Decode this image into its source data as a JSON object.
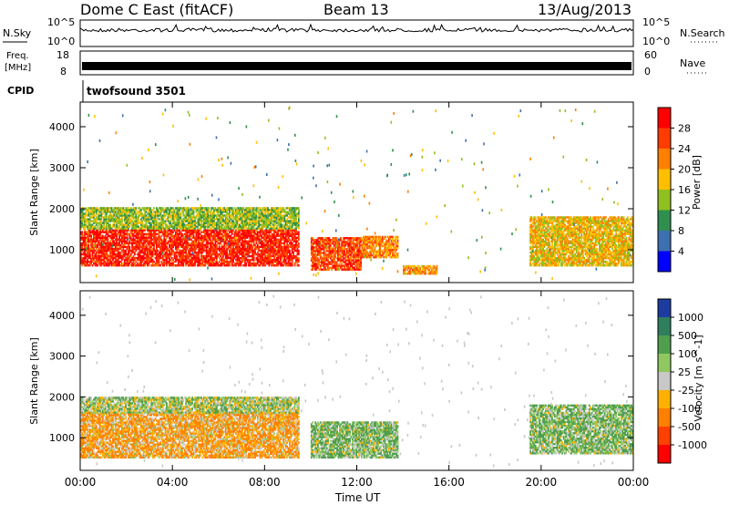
{
  "header": {
    "station": "Dome C East (fitACF)",
    "beam": "Beam 13",
    "date": "13/Aug/2013"
  },
  "noise_panel": {
    "left_label": "N.Sky",
    "right_label": "N.Search",
    "left_ticks": [
      "10^5",
      "10^0"
    ],
    "right_ticks": [
      "10^5",
      "10^0"
    ]
  },
  "freq_panel": {
    "left_label_top": "Freq.",
    "left_label_unit": "[MHz]",
    "right_label": "Nave",
    "left_ticks": [
      "18",
      "8"
    ],
    "right_ticks": [
      "60",
      "0"
    ]
  },
  "cpid_panel": {
    "label": "CPID",
    "value": "twofsound 3501"
  },
  "power_panel": {
    "ylabel": "Slant Range [km]",
    "yticks": [
      "4000",
      "3000",
      "2000",
      "1000"
    ],
    "colorbar_label": "Power [dB]",
    "colorbar_ticks": [
      "28",
      "24",
      "20",
      "16",
      "12",
      "8",
      "4"
    ],
    "colorbar_colors": [
      "#ff0000",
      "#ff3c00",
      "#ff7f00",
      "#ffbf00",
      "#8fc020",
      "#2f8f4f",
      "#3c70b0",
      "#0000ff"
    ]
  },
  "velocity_panel": {
    "ylabel": "Slant Range [km]",
    "yticks": [
      "4000",
      "3000",
      "2000",
      "1000"
    ],
    "colorbar_label": "Velocity [m s^-1]",
    "colorbar_ticks": [
      "1000",
      "500",
      "100",
      "25",
      "-25",
      "-100",
      "-500",
      "-1000"
    ],
    "colorbar_colors": [
      "#1c3ca0",
      "#2f7f5f",
      "#4f9f4f",
      "#90c860",
      "#c8c8c8",
      "#ffb000",
      "#ff8000",
      "#ff4000",
      "#ff0000"
    ]
  },
  "xaxis": {
    "label": "Time UT",
    "ticks": [
      "00:00",
      "04:00",
      "08:00",
      "12:00",
      "16:00",
      "20:00",
      "00:00"
    ]
  },
  "chart_data": [
    {
      "type": "heatmap",
      "title": "Power",
      "xlabel": "Time UT",
      "ylabel": "Slant Range [km]",
      "xlim_hours": [
        0,
        24
      ],
      "ylim_km": [
        200,
        4600
      ],
      "colorbar_label": "Power [dB]",
      "colorbar_range": [
        0,
        32
      ],
      "regions": [
        {
          "t_start": 0.0,
          "t_end": 9.5,
          "r_start": 600,
          "r_end": 1500,
          "value": 28
        },
        {
          "t_start": 0.0,
          "t_end": 9.5,
          "r_start": 1500,
          "r_end": 2000,
          "value": 14
        },
        {
          "t_start": 10.0,
          "t_end": 12.2,
          "r_start": 500,
          "r_end": 1300,
          "value": 26
        },
        {
          "t_start": 12.2,
          "t_end": 13.8,
          "r_start": 800,
          "r_end": 1300,
          "value": 22
        },
        {
          "t_start": 14.0,
          "t_end": 15.5,
          "r_start": 400,
          "r_end": 600,
          "value": 20
        },
        {
          "t_start": 19.5,
          "t_end": 24.0,
          "r_start": 600,
          "r_end": 1800,
          "value": 18
        }
      ]
    },
    {
      "type": "heatmap",
      "title": "Velocity",
      "xlabel": "Time UT",
      "ylabel": "Slant Range [km]",
      "xlim_hours": [
        0,
        24
      ],
      "ylim_km": [
        200,
        4600
      ],
      "colorbar_label": "Velocity [m s^-1]",
      "colorbar_range": [
        -1000,
        1000
      ],
      "regions": [
        {
          "t_start": 0.0,
          "t_end": 9.5,
          "r_start": 500,
          "r_end": 1600,
          "value": -100
        },
        {
          "t_start": 0.0,
          "t_end": 9.5,
          "r_start": 1600,
          "r_end": 2000,
          "value": 50
        },
        {
          "t_start": 10.0,
          "t_end": 13.8,
          "r_start": 500,
          "r_end": 1400,
          "value": 100
        },
        {
          "t_start": 19.5,
          "t_end": 24.0,
          "r_start": 600,
          "r_end": 1800,
          "value": 100
        }
      ]
    }
  ]
}
